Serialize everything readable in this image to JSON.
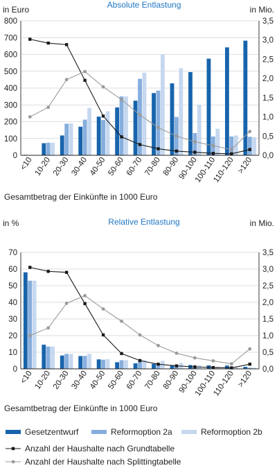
{
  "colors": {
    "gesetz": "#1764ac",
    "r2a": "#86aedd",
    "r2b": "#c6d8ef",
    "grund": "#1a1a1a",
    "splitting": "#9a9a9a",
    "title": "#1f77c4",
    "grid": "#bdbdbd"
  },
  "legend": {
    "gesetz": "Gesetzentwurf",
    "r2a": "Reformoption 2a",
    "r2b": "Reformoption 2b",
    "grund": "Anzahl der Haushalte nach Grundtabelle",
    "splitting": "Anzahl der Haushalte nach Splittingtabelle"
  },
  "chart_data": [
    {
      "type": "bar",
      "title": "Absolute Entlastung",
      "ylabel": "in Euro",
      "y2label": "in Mio.",
      "xlabel": "Gesamtbetrag der Einkünfte in 1000 Euro",
      "ylim": [
        0,
        800
      ],
      "yticks": [
        "0",
        "100",
        "200",
        "300",
        "400",
        "500",
        "600",
        "700",
        "800"
      ],
      "y2lim": [
        0,
        3.5
      ],
      "y2ticks": [
        "0,0",
        "0,5",
        "1,0",
        "1,5",
        "2,0",
        "2,5",
        "3,0",
        "3,5"
      ],
      "grid": "horizontal",
      "categories": [
        "<10",
        "10-20",
        "20-30",
        "30-40",
        "40-50",
        "50-60",
        "60-70",
        "70-80",
        "80-90",
        "90-100",
        "100-110",
        "110-120",
        ">120"
      ],
      "series": [
        {
          "name": "Gesetzentwurf",
          "key": "gesetz",
          "axis": "left",
          "values": [
            3,
            72,
            118,
            170,
            230,
            285,
            325,
            370,
            428,
            495,
            575,
            642,
            682
          ]
        },
        {
          "name": "Reformoption 2a",
          "key": "r2a",
          "axis": "left",
          "values": [
            2,
            75,
            188,
            212,
            210,
            350,
            455,
            385,
            228,
            132,
            112,
            112,
            110
          ]
        },
        {
          "name": "Reformoption 2b",
          "key": "r2b",
          "axis": "left",
          "values": [
            2,
            75,
            190,
            282,
            262,
            350,
            492,
            600,
            518,
            300,
            158,
            118,
            108
          ]
        },
        {
          "name": "Anzahl der Haushalte nach Grundtabelle",
          "key": "grund",
          "axis": "right",
          "type": "line",
          "values": [
            3.02,
            2.92,
            2.88,
            1.95,
            1.02,
            0.48,
            0.28,
            0.17,
            0.11,
            0.08,
            0.05,
            0.04,
            0.15
          ]
        },
        {
          "name": "Anzahl der Haushalte nach Splittingtabelle",
          "key": "splitting",
          "axis": "right",
          "type": "line",
          "values": [
            1.0,
            1.25,
            1.97,
            2.18,
            1.78,
            1.45,
            1.05,
            0.72,
            0.5,
            0.35,
            0.25,
            0.15,
            0.62
          ]
        }
      ]
    },
    {
      "type": "bar",
      "title": "Relative Entlastung",
      "ylabel": "in %",
      "y2label": "in Mio.",
      "xlabel": "Gesamtbetrag der Einkünfte in 1000 Euro",
      "ylim": [
        0,
        70
      ],
      "yticks": [
        "0",
        "10",
        "20",
        "30",
        "40",
        "50",
        "60",
        "70"
      ],
      "y2lim": [
        0,
        3.5
      ],
      "y2ticks": [
        "0,0",
        "0,5",
        "1,0",
        "1,5",
        "2,0",
        "2,5",
        "3,0",
        "3,5"
      ],
      "grid": "horizontal",
      "categories": [
        "<10",
        "10-20",
        "20-30",
        "30-40",
        "40-50",
        "50-60",
        "60-70",
        "70-80",
        "80-90",
        "90-100",
        "100-110",
        "110-120",
        ">120"
      ],
      "series": [
        {
          "name": "Gesetzentwurf",
          "key": "gesetz",
          "axis": "left",
          "values": [
            58,
            14.5,
            8,
            7.7,
            5.7,
            4,
            3.3,
            3,
            2.2,
            2.3,
            2.1,
            2,
            1.2
          ]
        },
        {
          "name": "Reformoption 2a",
          "key": "r2a",
          "axis": "left",
          "values": [
            53,
            13.4,
            9,
            7.8,
            5.5,
            5.2,
            4.7,
            3.1,
            1.6,
            1,
            0.9,
            0.9,
            0.7
          ]
        },
        {
          "name": "Reformoption 2b",
          "key": "r2b",
          "axis": "left",
          "values": [
            53,
            13.4,
            9,
            9,
            5.8,
            5.2,
            5.2,
            4.8,
            3.6,
            2.1,
            1.3,
            0.9,
            0.7
          ]
        },
        {
          "name": "Anzahl der Haushalte nach Grundtabelle",
          "key": "grund",
          "axis": "right",
          "type": "line",
          "values": [
            3.05,
            2.93,
            2.9,
            1.96,
            1.02,
            0.46,
            0.25,
            0.14,
            0.09,
            0.06,
            0.04,
            0.03,
            0.14
          ]
        },
        {
          "name": "Anzahl der Haushalte nach Splittingtabelle",
          "key": "splitting",
          "axis": "right",
          "type": "line",
          "values": [
            1.0,
            1.23,
            1.97,
            2.2,
            1.8,
            1.43,
            1.02,
            0.7,
            0.47,
            0.33,
            0.24,
            0.15,
            0.6
          ]
        }
      ]
    }
  ]
}
